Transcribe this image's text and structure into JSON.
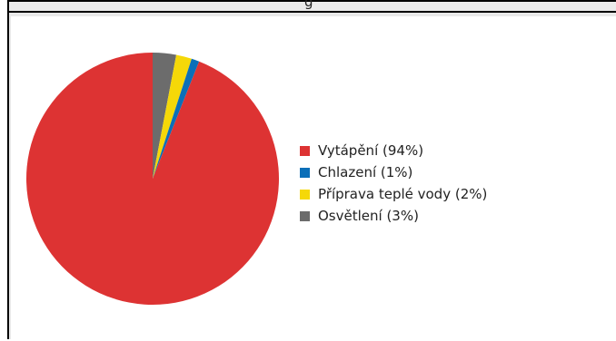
{
  "title_fragment": "g",
  "chart_data": {
    "type": "pie",
    "title": "",
    "start_angle_deg": 0,
    "direction": "clockwise",
    "slices": [
      {
        "label": "Vytápění (94%)",
        "value": 94,
        "color": "#dd3333"
      },
      {
        "label": "Chlazení (1%)",
        "value": 1,
        "color": "#0b6fb8"
      },
      {
        "label": "Příprava teplé vody (2%)",
        "value": 2,
        "color": "#f5d808"
      },
      {
        "label": "Osvětlení (3%)",
        "value": 3,
        "color": "#6c6c6c"
      }
    ],
    "draw_order": [
      3,
      2,
      1,
      0
    ],
    "legend_position": "right"
  }
}
